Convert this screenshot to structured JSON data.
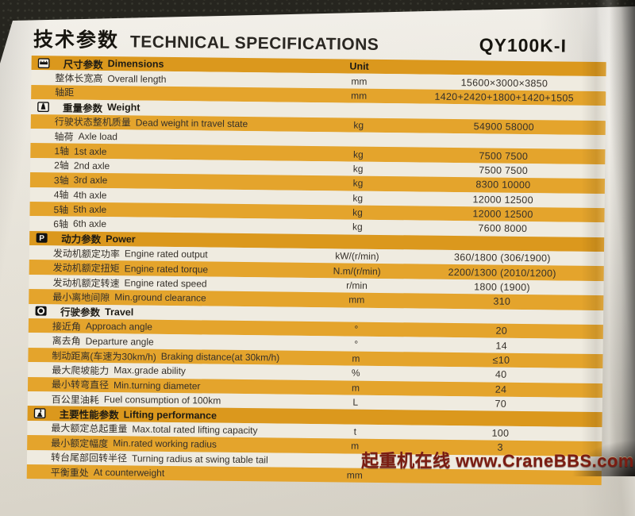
{
  "header": {
    "title_zh": "技术参数",
    "title_en": "TECHNICAL SPECIFICATIONS",
    "model": "QY100K-I"
  },
  "table": {
    "unit_header": "Unit",
    "sections": [
      {
        "icon": "ruler-icon",
        "zh": "尺寸参数",
        "en": "Dimensions",
        "show_unit_header": true,
        "rows": [
          {
            "zh": "整体长宽高",
            "en": "Overall length",
            "unit": "mm",
            "value": "15600×3000×3850"
          },
          {
            "zh": "轴距",
            "en": "",
            "unit": "mm",
            "value": "1420+2420+1800+1420+1505"
          }
        ]
      },
      {
        "icon": "weight-icon",
        "zh": "重量参数",
        "en": "Weight",
        "show_unit_header": false,
        "rows": [
          {
            "zh": "行驶状态整机质量",
            "en": "Dead weight in travel state",
            "unit": "kg",
            "value": "54900 58000"
          },
          {
            "zh": "轴荷",
            "en": "Axle load",
            "unit": "",
            "value": ""
          },
          {
            "zh": "1轴",
            "en": "1st axle",
            "unit": "kg",
            "value": "7500 7500"
          },
          {
            "zh": "2轴",
            "en": "2nd axle",
            "unit": "kg",
            "value": "7500 7500"
          },
          {
            "zh": "3轴",
            "en": "3rd axle",
            "unit": "kg",
            "value": "8300 10000"
          },
          {
            "zh": "4轴",
            "en": "4th axle",
            "unit": "kg",
            "value": "12000 12500"
          },
          {
            "zh": "5轴",
            "en": "5th axle",
            "unit": "kg",
            "value": "12000 12500"
          },
          {
            "zh": "6轴",
            "en": "6th axle",
            "unit": "kg",
            "value": "7600 8000"
          }
        ]
      },
      {
        "icon": "power-icon",
        "zh": "动力参数",
        "en": "Power",
        "show_unit_header": false,
        "rows": [
          {
            "zh": "发动机额定功率",
            "en": "Engine rated output",
            "unit": "kW/(r/min)",
            "value": "360/1800 (306/1900)"
          },
          {
            "zh": "发动机额定扭矩",
            "en": "Engine rated torque",
            "unit": "N.m/(r/min)",
            "value": "2200/1300 (2010/1200)"
          },
          {
            "zh": "发动机额定转速",
            "en": "Engine rated speed",
            "unit": "r/min",
            "value": "1800 (1900)"
          },
          {
            "zh": "最小离地间隙",
            "en": "Min.ground clearance",
            "unit": "mm",
            "value": "310"
          }
        ]
      },
      {
        "icon": "wheel-icon",
        "zh": "行驶参数",
        "en": "Travel",
        "show_unit_header": false,
        "rows": [
          {
            "zh": "接近角",
            "en": "Approach angle",
            "unit": "°",
            "value": "20"
          },
          {
            "zh": "离去角",
            "en": "Departure angle",
            "unit": "°",
            "value": "14"
          },
          {
            "zh": "制动距离(车速为30km/h)",
            "en": "Braking distance(at 30km/h)",
            "unit": "m",
            "value": "≤10"
          },
          {
            "zh": "最大爬坡能力",
            "en": "Max.grade ability",
            "unit": "%",
            "value": "40"
          },
          {
            "zh": "最小转弯直径",
            "en": "Min.turning diameter",
            "unit": "m",
            "value": "24"
          },
          {
            "zh": "百公里油耗",
            "en": "Fuel consumption of 100km",
            "unit": "L",
            "value": "70"
          }
        ]
      },
      {
        "icon": "hook-icon",
        "zh": "主要性能参数",
        "en": "Lifting performance",
        "show_unit_header": false,
        "rows": [
          {
            "zh": "最大额定总起重量",
            "en": "Max.total rated lifting capacity",
            "unit": "t",
            "value": "100"
          },
          {
            "zh": "最小额定幅度",
            "en": "Min.rated working radius",
            "unit": "m",
            "value": "3"
          },
          {
            "zh": "转台尾部回转半径",
            "en": "Turning radius at swing table tail",
            "unit": "",
            "value": ""
          },
          {
            "zh": "平衡重处",
            "en": "At counterweight",
            "unit": "mm",
            "value": ""
          }
        ]
      }
    ]
  },
  "watermark": "起重机在线 www.CraneBBS.com",
  "colors": {
    "row_gold": "#E4A42C",
    "header_gold": "#DB981D",
    "row_white": "#EFEBE0",
    "watermark": "#7A1C12"
  }
}
